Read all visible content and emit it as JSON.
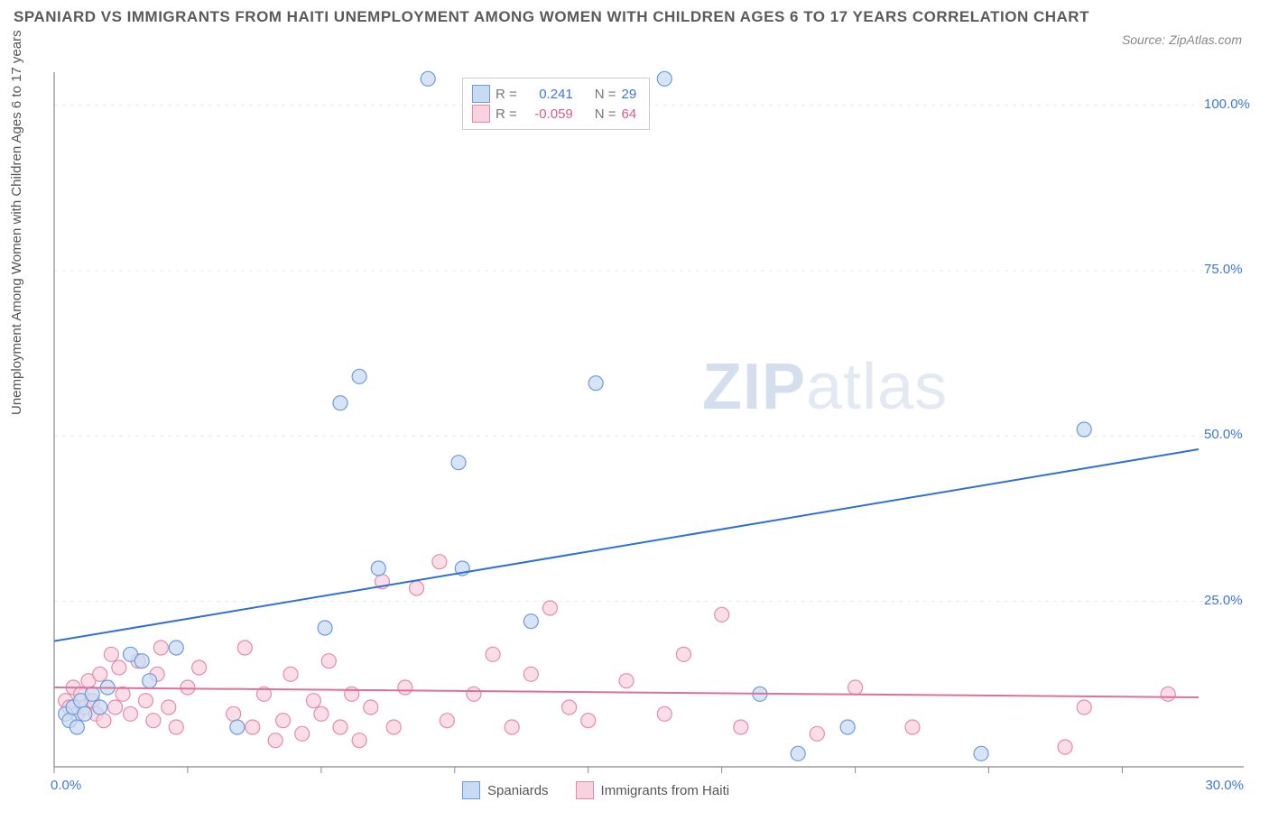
{
  "title": "SPANIARD VS IMMIGRANTS FROM HAITI UNEMPLOYMENT AMONG WOMEN WITH CHILDREN AGES 6 TO 17 YEARS CORRELATION CHART",
  "source": "Source: ZipAtlas.com",
  "y_axis_label": "Unemployment Among Women with Children Ages 6 to 17 years",
  "watermark_a": "ZIP",
  "watermark_b": "atlas",
  "chart": {
    "type": "scatter",
    "background_color": "#ffffff",
    "grid_color": "#e8e8e8",
    "axis_color": "#888888",
    "tick_color": "#888888",
    "x_range": [
      0,
      30
    ],
    "y_range": [
      0,
      105
    ],
    "x_ticks": [
      0,
      3.5,
      7,
      10.5,
      14,
      17.5,
      21,
      24.5,
      28
    ],
    "x_tick_labels": {
      "0": "0.0%",
      "30": "30.0%"
    },
    "y_grid": [
      25,
      50,
      75,
      100
    ],
    "y_tick_labels": {
      "25": "25.0%",
      "50": "50.0%",
      "75": "75.0%",
      "100": "100.0%"
    },
    "marker_radius": 8,
    "marker_stroke_width": 1.2,
    "trend_line_width": 2,
    "series": [
      {
        "name": "Spaniards",
        "fill": "#c9dbf3",
        "stroke": "#6b9bdc",
        "line_color": "#2f6fd6",
        "R": "0.241",
        "N": "29",
        "trend": {
          "x1": 0,
          "y1": 19,
          "x2": 30,
          "y2": 48
        },
        "points": [
          [
            0.3,
            8
          ],
          [
            0.4,
            7
          ],
          [
            0.5,
            9
          ],
          [
            0.6,
            6
          ],
          [
            0.7,
            10
          ],
          [
            0.8,
            8
          ],
          [
            1.0,
            11
          ],
          [
            1.2,
            9
          ],
          [
            1.4,
            12
          ],
          [
            2.0,
            17
          ],
          [
            2.3,
            16
          ],
          [
            2.5,
            13
          ],
          [
            3.2,
            18
          ],
          [
            4.8,
            6
          ],
          [
            7.1,
            21
          ],
          [
            7.5,
            55
          ],
          [
            8.0,
            59
          ],
          [
            8.5,
            30
          ],
          [
            9.8,
            104
          ],
          [
            10.6,
            46
          ],
          [
            10.7,
            30
          ],
          [
            12.5,
            22
          ],
          [
            14.2,
            58
          ],
          [
            16.0,
            104
          ],
          [
            18.5,
            11
          ],
          [
            19.5,
            2
          ],
          [
            20.8,
            6
          ],
          [
            24.3,
            2
          ],
          [
            27.0,
            51
          ]
        ]
      },
      {
        "name": "Immigrants from Haiti",
        "fill": "#f8d2de",
        "stroke": "#e48bab",
        "line_color": "#e06f99",
        "R": "-0.059",
        "N": "64",
        "trend": {
          "x1": 0,
          "y1": 12,
          "x2": 30,
          "y2": 10.5
        },
        "points": [
          [
            0.3,
            10
          ],
          [
            0.4,
            9
          ],
          [
            0.5,
            12
          ],
          [
            0.6,
            8
          ],
          [
            0.7,
            11
          ],
          [
            0.8,
            9
          ],
          [
            0.9,
            13
          ],
          [
            1.0,
            10
          ],
          [
            1.1,
            8
          ],
          [
            1.2,
            14
          ],
          [
            1.3,
            7
          ],
          [
            1.5,
            17
          ],
          [
            1.6,
            9
          ],
          [
            1.7,
            15
          ],
          [
            1.8,
            11
          ],
          [
            2.0,
            8
          ],
          [
            2.2,
            16
          ],
          [
            2.4,
            10
          ],
          [
            2.6,
            7
          ],
          [
            2.7,
            14
          ],
          [
            2.8,
            18
          ],
          [
            3.0,
            9
          ],
          [
            3.2,
            6
          ],
          [
            3.5,
            12
          ],
          [
            3.8,
            15
          ],
          [
            4.7,
            8
          ],
          [
            5.0,
            18
          ],
          [
            5.2,
            6
          ],
          [
            5.5,
            11
          ],
          [
            5.8,
            4
          ],
          [
            6.0,
            7
          ],
          [
            6.2,
            14
          ],
          [
            6.5,
            5
          ],
          [
            6.8,
            10
          ],
          [
            7.0,
            8
          ],
          [
            7.2,
            16
          ],
          [
            7.5,
            6
          ],
          [
            7.8,
            11
          ],
          [
            8.0,
            4
          ],
          [
            8.3,
            9
          ],
          [
            8.6,
            28
          ],
          [
            8.9,
            6
          ],
          [
            9.2,
            12
          ],
          [
            9.5,
            27
          ],
          [
            10.1,
            31
          ],
          [
            10.3,
            7
          ],
          [
            11.0,
            11
          ],
          [
            11.5,
            17
          ],
          [
            12.0,
            6
          ],
          [
            12.5,
            14
          ],
          [
            13.0,
            24
          ],
          [
            13.5,
            9
          ],
          [
            14.0,
            7
          ],
          [
            15.0,
            13
          ],
          [
            16.0,
            8
          ],
          [
            16.5,
            17
          ],
          [
            17.5,
            23
          ],
          [
            18.0,
            6
          ],
          [
            20.0,
            5
          ],
          [
            21.0,
            12
          ],
          [
            22.5,
            6
          ],
          [
            26.5,
            3
          ],
          [
            27.0,
            9
          ],
          [
            29.2,
            11
          ]
        ]
      }
    ],
    "stats_legend": {
      "R_label": "R =",
      "N_label": "N ="
    },
    "bottom_legend": [
      {
        "label": "Spaniards",
        "fill": "#c9dbf3",
        "stroke": "#6b9bdc"
      },
      {
        "label": "Immigrants from Haiti",
        "fill": "#f8d2de",
        "stroke": "#e48bab"
      }
    ]
  }
}
